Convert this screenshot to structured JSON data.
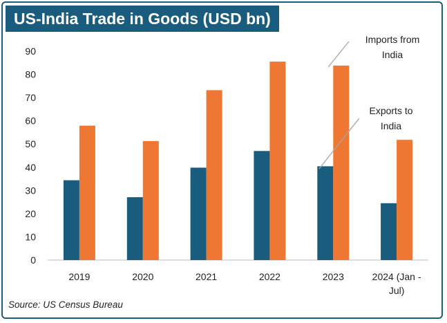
{
  "title": "US-India Trade in Goods (USD bn)",
  "source": "Source: US Census Bureau",
  "colors": {
    "exports": "#1a5c7e",
    "imports": "#ee7733",
    "title_bg": "#1a5c7e"
  },
  "annotations": {
    "imports": [
      "Imports from",
      "India"
    ],
    "exports": [
      "Exports to",
      "India"
    ]
  },
  "chart_data": {
    "type": "bar",
    "title": "US-India Trade in Goods (USD bn)",
    "categories": [
      [
        "2019"
      ],
      [
        "2020"
      ],
      [
        "2021"
      ],
      [
        "2022"
      ],
      [
        "2023"
      ],
      [
        "2024 (Jan -",
        "Jul)"
      ]
    ],
    "series": [
      {
        "name": "Exports to India",
        "values": [
          34.4,
          27.1,
          39.8,
          47.0,
          40.4,
          24.5
        ]
      },
      {
        "name": "Imports from India",
        "values": [
          57.9,
          51.3,
          73.2,
          85.5,
          83.8,
          51.8
        ]
      }
    ],
    "yticks": [
      0,
      10,
      20,
      30,
      40,
      50,
      60,
      70,
      80,
      90
    ],
    "ylim": [
      0,
      90
    ],
    "grid": false,
    "legend": "none"
  }
}
